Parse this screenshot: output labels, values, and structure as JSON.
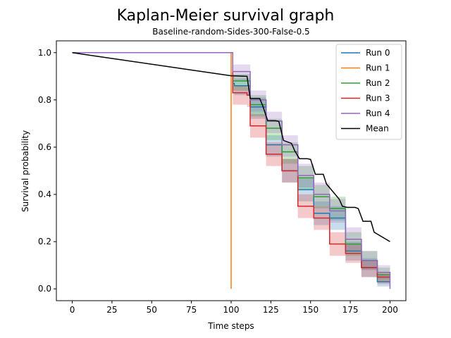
{
  "chart_data": {
    "type": "line",
    "title": "Kaplan-Meier survival graph",
    "subtitle": "Baseline-random-Sides-300-False-0.5",
    "xlabel": "Time steps",
    "ylabel": "Survival probability",
    "xlim": [
      -10,
      210
    ],
    "ylim": [
      -0.05,
      1.05
    ],
    "xticks": [
      0,
      25,
      50,
      75,
      100,
      125,
      150,
      175,
      200
    ],
    "yticks": [
      0.0,
      0.2,
      0.4,
      0.6,
      0.8,
      1.0
    ],
    "xtick_labels": [
      "0",
      "25",
      "50",
      "75",
      "100",
      "125",
      "150",
      "175",
      "200"
    ],
    "ytick_labels": [
      "0.0",
      "0.2",
      "0.4",
      "0.6",
      "0.8",
      "1.0"
    ],
    "legend_position": "top-right",
    "series": [
      {
        "name": "Run 0",
        "color": "#1f77b4",
        "step": true,
        "x": [
          0,
          100,
          101,
          102,
          103,
          110,
          112,
          120,
          122,
          130,
          132,
          140,
          142,
          150,
          152,
          160,
          162,
          170,
          172,
          180,
          182,
          190,
          192,
          200
        ],
        "y": [
          1.0,
          1.0,
          0.87,
          0.86,
          0.86,
          0.86,
          0.77,
          0.77,
          0.61,
          0.61,
          0.5,
          0.5,
          0.42,
          0.42,
          0.32,
          0.32,
          0.3,
          0.3,
          0.16,
          0.16,
          0.09,
          0.09,
          0.03,
          0.03
        ],
        "ci_upper": [
          1.0,
          1.0,
          0.9,
          0.89,
          0.89,
          0.89,
          0.81,
          0.81,
          0.65,
          0.65,
          0.55,
          0.55,
          0.47,
          0.47,
          0.37,
          0.37,
          0.35,
          0.35,
          0.2,
          0.2,
          0.13,
          0.13,
          0.06,
          0.06
        ],
        "ci_lower": [
          1.0,
          1.0,
          0.83,
          0.82,
          0.82,
          0.82,
          0.72,
          0.72,
          0.56,
          0.56,
          0.45,
          0.45,
          0.37,
          0.37,
          0.27,
          0.27,
          0.25,
          0.25,
          0.12,
          0.12,
          0.05,
          0.05,
          0.01,
          0.01
        ]
      },
      {
        "name": "Run 1",
        "color": "#ff7f0e",
        "step": true,
        "x": [
          0,
          100,
          100
        ],
        "y": [
          1.0,
          1.0,
          0.0
        ]
      },
      {
        "name": "Run 2",
        "color": "#2ca02c",
        "step": true,
        "x": [
          0,
          100,
          101,
          110,
          112,
          120,
          122,
          130,
          132,
          140,
          142,
          150,
          152,
          160,
          162,
          170,
          172,
          180,
          182,
          190,
          192,
          200
        ],
        "y": [
          1.0,
          1.0,
          0.88,
          0.88,
          0.78,
          0.78,
          0.68,
          0.68,
          0.58,
          0.58,
          0.47,
          0.47,
          0.39,
          0.39,
          0.34,
          0.34,
          0.19,
          0.19,
          0.12,
          0.12,
          0.06,
          0.06
        ],
        "ci_upper": [
          1.0,
          1.0,
          0.91,
          0.91,
          0.82,
          0.82,
          0.72,
          0.72,
          0.62,
          0.62,
          0.52,
          0.52,
          0.44,
          0.44,
          0.39,
          0.39,
          0.24,
          0.24,
          0.16,
          0.16,
          0.09,
          0.09
        ],
        "ci_lower": [
          1.0,
          1.0,
          0.84,
          0.84,
          0.73,
          0.73,
          0.63,
          0.63,
          0.53,
          0.53,
          0.42,
          0.42,
          0.34,
          0.34,
          0.29,
          0.29,
          0.14,
          0.14,
          0.08,
          0.08,
          0.03,
          0.03
        ]
      },
      {
        "name": "Run 3",
        "color": "#d62728",
        "step": true,
        "x": [
          0,
          100,
          101,
          110,
          112,
          120,
          122,
          130,
          132,
          140,
          142,
          150,
          152,
          160,
          162,
          170,
          172,
          180,
          182,
          190,
          192,
          200
        ],
        "y": [
          1.0,
          1.0,
          0.83,
          0.82,
          0.69,
          0.69,
          0.57,
          0.57,
          0.5,
          0.5,
          0.35,
          0.35,
          0.3,
          0.3,
          0.19,
          0.19,
          0.15,
          0.15,
          0.09,
          0.09,
          0.05,
          0.05
        ],
        "ci_upper": [
          1.0,
          1.0,
          0.86,
          0.85,
          0.74,
          0.74,
          0.62,
          0.62,
          0.55,
          0.55,
          0.4,
          0.4,
          0.35,
          0.35,
          0.24,
          0.24,
          0.19,
          0.19,
          0.12,
          0.12,
          0.07,
          0.07
        ],
        "ci_lower": [
          1.0,
          1.0,
          0.78,
          0.77,
          0.64,
          0.64,
          0.52,
          0.52,
          0.45,
          0.45,
          0.3,
          0.3,
          0.25,
          0.25,
          0.14,
          0.14,
          0.11,
          0.11,
          0.05,
          0.05,
          0.02,
          0.02
        ]
      },
      {
        "name": "Run 4",
        "color": "#9467bd",
        "step": true,
        "x": [
          0,
          100,
          101,
          110,
          112,
          120,
          122,
          130,
          132,
          140,
          142,
          150,
          152,
          160,
          162,
          170,
          172,
          180,
          182,
          190,
          192,
          200,
          200
        ],
        "y": [
          1.0,
          1.0,
          0.92,
          0.92,
          0.8,
          0.8,
          0.71,
          0.71,
          0.61,
          0.61,
          0.48,
          0.48,
          0.4,
          0.4,
          0.33,
          0.33,
          0.21,
          0.21,
          0.12,
          0.12,
          0.07,
          0.07,
          0.0
        ],
        "ci_upper": [
          1.0,
          1.0,
          0.95,
          0.95,
          0.84,
          0.84,
          0.75,
          0.75,
          0.65,
          0.65,
          0.53,
          0.53,
          0.45,
          0.45,
          0.38,
          0.38,
          0.26,
          0.26,
          0.16,
          0.16,
          0.1,
          0.1,
          0.1
        ],
        "ci_lower": [
          1.0,
          1.0,
          0.88,
          0.88,
          0.75,
          0.75,
          0.66,
          0.66,
          0.56,
          0.56,
          0.43,
          0.43,
          0.35,
          0.35,
          0.28,
          0.28,
          0.16,
          0.16,
          0.08,
          0.08,
          0.04,
          0.04,
          0.0
        ]
      },
      {
        "name": "Mean",
        "color": "#000000",
        "step": false,
        "x": [
          0,
          100,
          101,
          110,
          112,
          118,
          120,
          123,
          128,
          130,
          133,
          138,
          140,
          143,
          148,
          150,
          153,
          158,
          160,
          168,
          170,
          173,
          178,
          180,
          183,
          188,
          190,
          200
        ],
        "y": [
          1.0,
          0.902,
          0.902,
          0.9,
          0.806,
          0.806,
          0.773,
          0.712,
          0.712,
          0.709,
          0.628,
          0.616,
          0.585,
          0.551,
          0.551,
          0.548,
          0.485,
          0.485,
          0.444,
          0.38,
          0.35,
          0.345,
          0.345,
          0.34,
          0.286,
          0.286,
          0.24,
          0.2
        ]
      }
    ]
  }
}
